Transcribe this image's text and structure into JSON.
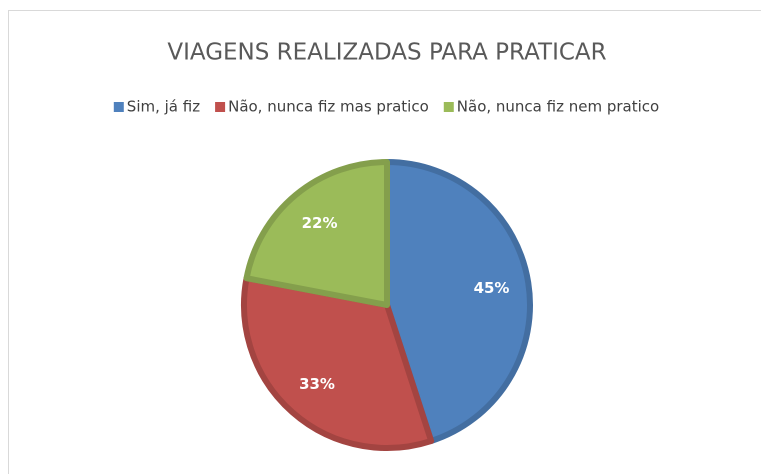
{
  "chart_data": {
    "type": "pie",
    "title": "VIAGENS REALIZADAS PARA PRATICAR",
    "categories": [
      "Sim, já fiz",
      "Não, nunca fiz mas pratico",
      "Não, nunca fiz nem pratico"
    ],
    "values": [
      45,
      33,
      22
    ],
    "value_labels": [
      "45%",
      "33%",
      "22%"
    ],
    "colors": [
      "#4f81bd",
      "#c0504d",
      "#9bbb59"
    ],
    "legend": "top"
  }
}
